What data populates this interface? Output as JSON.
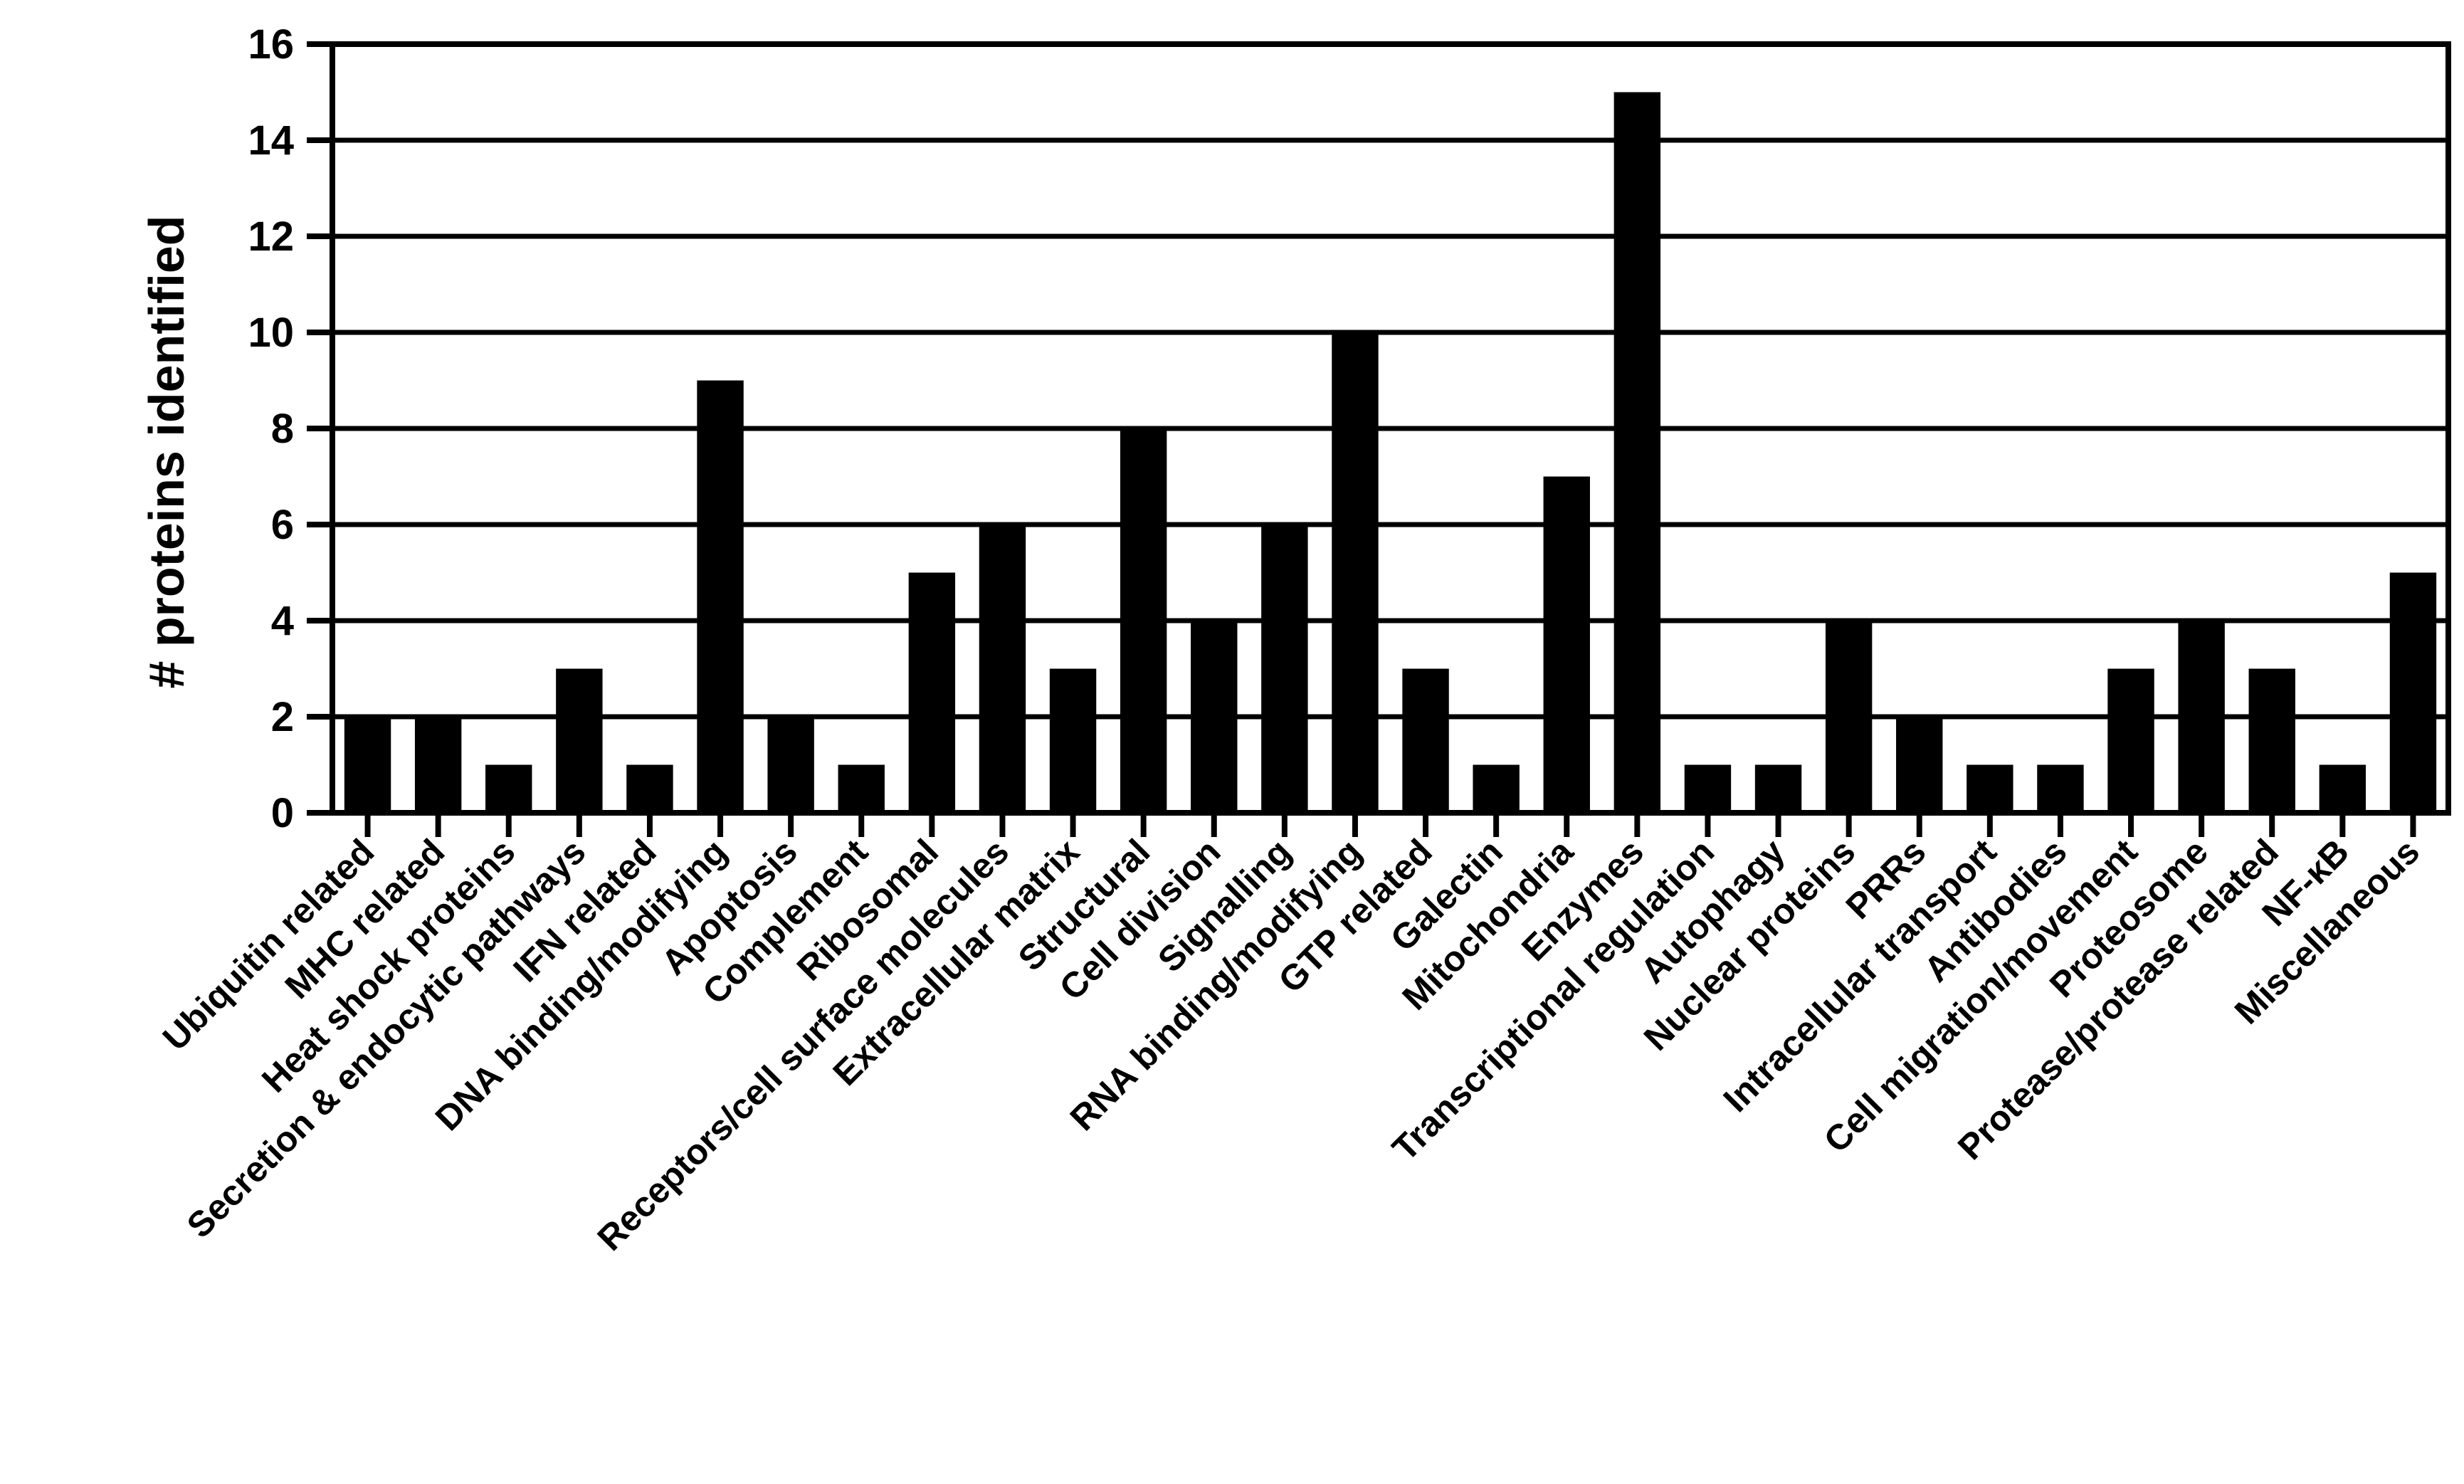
{
  "chart_data": {
    "type": "bar",
    "title": "",
    "xlabel": "",
    "ylabel": "# proteins identified",
    "ylim": [
      0,
      16
    ],
    "yticks": [
      0,
      2,
      4,
      6,
      8,
      10,
      12,
      14,
      16
    ],
    "grid": true,
    "legend": "none",
    "colors": {
      "bar": "#000000",
      "grid": "#000000",
      "background": "#ffffff"
    },
    "categories": [
      "Ubiquitin related",
      "MHC related",
      "Heat shock proteins",
      "Secretion & endocytic pathways",
      "IFN related",
      "DNA binding/modifying",
      "Apoptosis",
      "Complement",
      "Ribosomal",
      "Receptors/cell surface molecules",
      "Extracellular matrix",
      "Structural",
      "Cell division",
      "Signalling",
      "RNA binding/modifying",
      "GTP related",
      "Galectin",
      "Mitochondria",
      "Enzymes",
      "Transcriptional regulation",
      "Autophagy",
      "Nuclear proteins",
      "PRRs",
      "Intracellular transport",
      "Antibodies",
      "Cell migration/movement",
      "Proteosome",
      "Protease/protease related",
      "NF-κB",
      "Miscellaneous"
    ],
    "values": [
      2,
      2,
      1,
      3,
      1,
      9,
      2,
      1,
      5,
      6,
      3,
      8,
      4,
      6,
      10,
      3,
      1,
      7,
      15,
      1,
      1,
      4,
      2,
      1,
      1,
      3,
      4,
      3,
      1,
      5
    ]
  }
}
